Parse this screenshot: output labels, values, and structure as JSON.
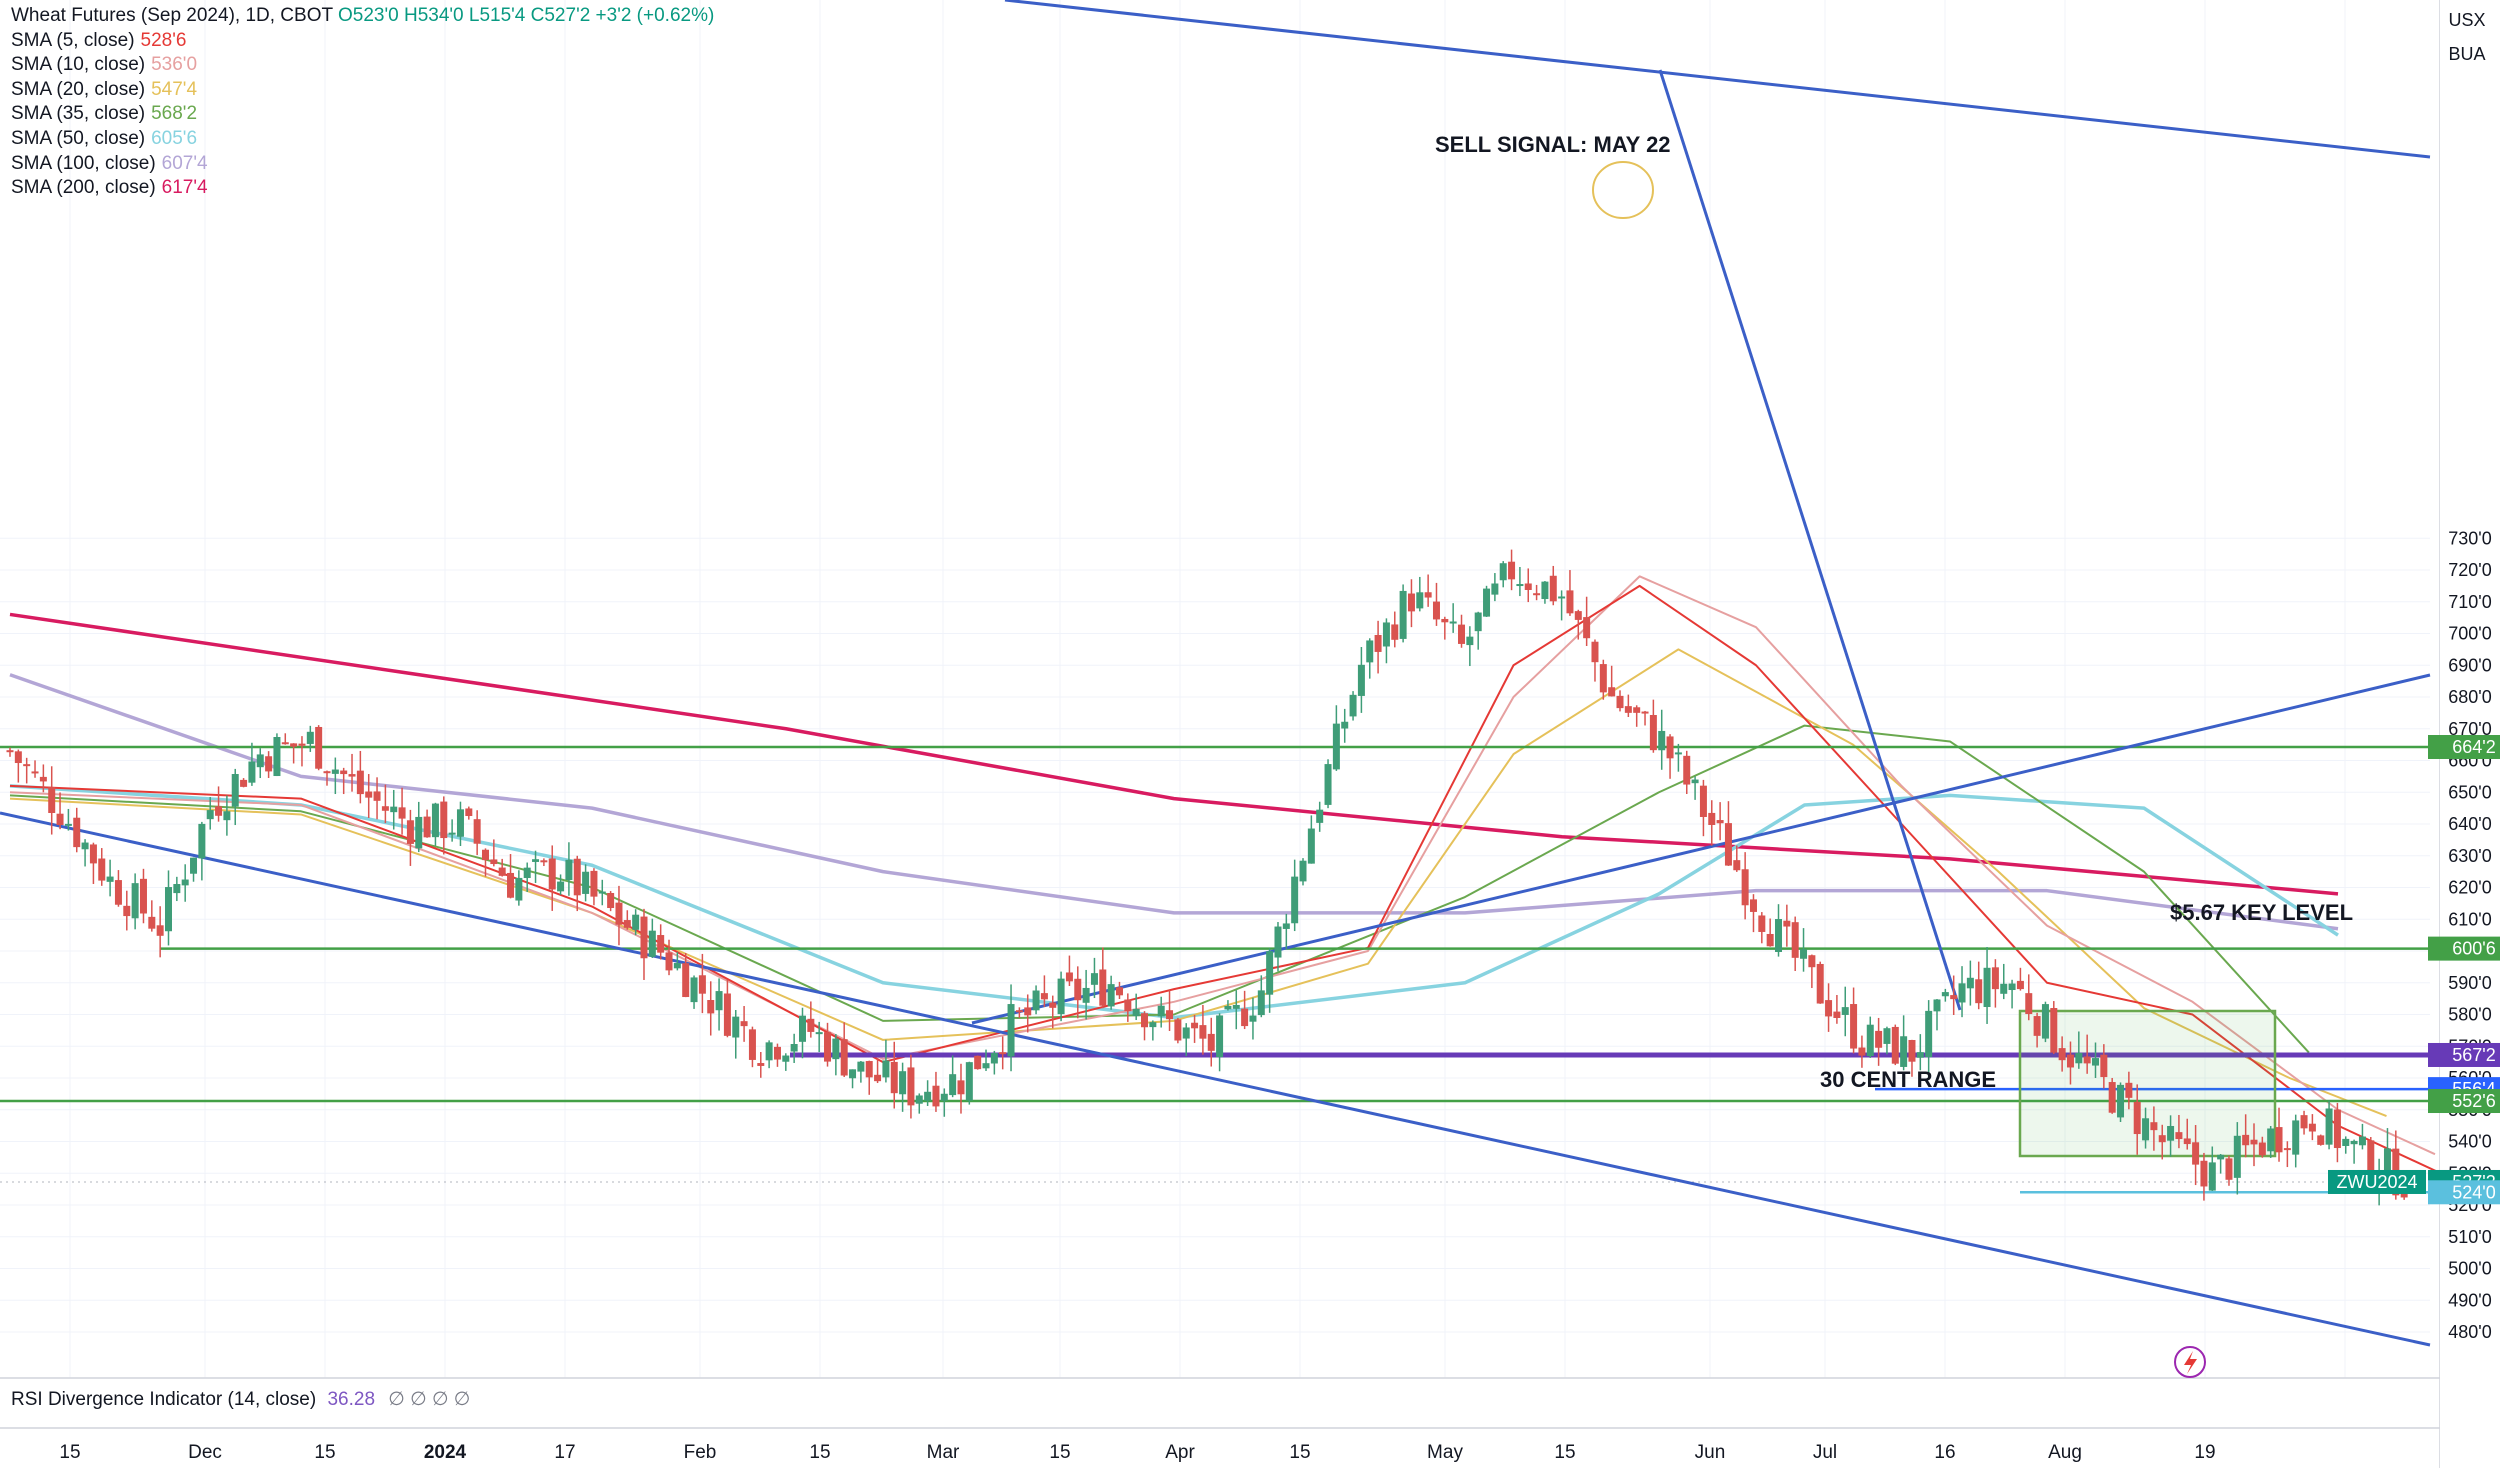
{
  "header": {
    "symbol_title": "Wheat Futures (Sep 2024), 1D, CBOT",
    "ohlc": [
      "O523'0",
      "H534'0",
      "L515'4",
      "C527'2",
      "+3'2 (+0.62%)"
    ]
  },
  "corner": {
    "currency": "USX",
    "unit": "BUA"
  },
  "indicators": [
    {
      "label": "SMA (5, close)",
      "value": "528'6",
      "color": "#e53935"
    },
    {
      "label": "SMA (10, close)",
      "value": "536'0",
      "color": "#e6a0a0"
    },
    {
      "label": "SMA (20, close)",
      "value": "547'4",
      "color": "#e5c15a"
    },
    {
      "label": "SMA (35, close)",
      "value": "568'2",
      "color": "#6aa84f"
    },
    {
      "label": "SMA (50, close)",
      "value": "605'6",
      "color": "#87d3e0"
    },
    {
      "label": "SMA (100, close)",
      "value": "607'4",
      "color": "#b3a6d6"
    },
    {
      "label": "SMA (200, close)",
      "value": "617'4",
      "color": "#d81b60"
    }
  ],
  "rsi": {
    "label": "RSI Divergence Indicator (14, close)",
    "value": "36.28",
    "glyphs": "∅ ∅ ∅ ∅"
  },
  "chart_data": {
    "type": "candlestick",
    "ylim": [
      480,
      735
    ],
    "yticks": [
      "480'0",
      "490'0",
      "500'0",
      "510'0",
      "520'0",
      "530'0",
      "540'0",
      "550'0",
      "560'0",
      "570'0",
      "580'0",
      "590'0",
      "600'0",
      "610'0",
      "620'0",
      "630'0",
      "640'0",
      "650'0",
      "660'0",
      "670'0",
      "680'0",
      "690'0",
      "700'0",
      "710'0",
      "720'0",
      "730'0"
    ],
    "x_labels": [
      "15",
      "Dec",
      "15",
      "2024",
      "17",
      "Feb",
      "15",
      "Mar",
      "15",
      "Apr",
      "15",
      "May",
      "15",
      "Jun",
      "Jul",
      "16",
      "Aug",
      "19"
    ],
    "price_tags": [
      {
        "text": "664'2",
        "value": 664.25,
        "color": "#43a047"
      },
      {
        "text": "600'6",
        "value": 600.75,
        "color": "#43a047"
      },
      {
        "text": "567'2",
        "value": 567.25,
        "color": "#673ab7"
      },
      {
        "text": "556'4",
        "value": 556.5,
        "color": "#2962ff"
      },
      {
        "text": "552'6",
        "value": 552.75,
        "color": "#43a047"
      },
      {
        "text": "527'2",
        "value": 527.25,
        "color": "#089981"
      },
      {
        "text": "524'0",
        "value": 524.0,
        "color": "#5bc0de"
      }
    ],
    "symbol_tag": "ZWU2024",
    "annotations": [
      "SELL SIGNAL: MAY 22",
      "$5.67 KEY LEVEL",
      "30 CENT RANGE"
    ],
    "horizontal_levels": [
      664.25,
      600.75,
      567.25,
      556.5,
      552.75,
      524.0
    ],
    "candle_path": [
      [
        0,
        663
      ],
      [
        6,
        645
      ],
      [
        12,
        622
      ],
      [
        18,
        608
      ],
      [
        24,
        645
      ],
      [
        30,
        662
      ],
      [
        36,
        666
      ],
      [
        42,
        650
      ],
      [
        48,
        640
      ],
      [
        54,
        640
      ],
      [
        60,
        622
      ],
      [
        66,
        625
      ],
      [
        72,
        612
      ],
      [
        78,
        600
      ],
      [
        84,
        585
      ],
      [
        90,
        570
      ],
      [
        96,
        575
      ],
      [
        102,
        562
      ],
      [
        108,
        556
      ],
      [
        114,
        560
      ],
      [
        120,
        577
      ],
      [
        126,
        585
      ],
      [
        132,
        590
      ],
      [
        138,
        578
      ],
      [
        144,
        570
      ],
      [
        150,
        588
      ],
      [
        156,
        640
      ],
      [
        162,
        690
      ],
      [
        168,
        712
      ],
      [
        174,
        695
      ],
      [
        180,
        720
      ],
      [
        186,
        712
      ],
      [
        192,
        680
      ],
      [
        198,
        666
      ],
      [
        204,
        640
      ],
      [
        210,
        612
      ],
      [
        216,
        590
      ],
      [
        222,
        572
      ],
      [
        228,
        568
      ],
      [
        234,
        588
      ],
      [
        240,
        590
      ],
      [
        246,
        570
      ],
      [
        252,
        555
      ],
      [
        258,
        540
      ],
      [
        264,
        530
      ],
      [
        270,
        540
      ],
      [
        276,
        548
      ],
      [
        282,
        535
      ],
      [
        288,
        527
      ]
    ],
    "sma": [
      {
        "name": "SMA 200",
        "color": "#d81b60",
        "points": [
          [
            0,
            706
          ],
          [
            40,
            688
          ],
          [
            80,
            670
          ],
          [
            120,
            648
          ],
          [
            160,
            636
          ],
          [
            200,
            629
          ],
          [
            240,
            618
          ]
        ]
      },
      {
        "name": "SMA 100",
        "color": "#b3a6d6",
        "points": [
          [
            0,
            687
          ],
          [
            30,
            655
          ],
          [
            60,
            645
          ],
          [
            90,
            625
          ],
          [
            120,
            612
          ],
          [
            150,
            612
          ],
          [
            180,
            619
          ],
          [
            210,
            619
          ],
          [
            240,
            607
          ]
        ]
      },
      {
        "name": "SMA 50",
        "color": "#87d3e0",
        "points": [
          [
            0,
            652
          ],
          [
            30,
            646
          ],
          [
            60,
            627
          ],
          [
            90,
            590
          ],
          [
            120,
            579
          ],
          [
            150,
            590
          ],
          [
            170,
            618
          ],
          [
            185,
            646
          ],
          [
            200,
            649
          ],
          [
            220,
            645
          ],
          [
            240,
            605
          ]
        ]
      },
      {
        "name": "SMA 35",
        "color": "#6aa84f",
        "points": [
          [
            0,
            649
          ],
          [
            30,
            644
          ],
          [
            60,
            620
          ],
          [
            90,
            578
          ],
          [
            120,
            580
          ],
          [
            150,
            617
          ],
          [
            170,
            650
          ],
          [
            185,
            671
          ],
          [
            200,
            666
          ],
          [
            220,
            625
          ],
          [
            237,
            568
          ]
        ]
      },
      {
        "name": "SMA 20",
        "color": "#e5c15a",
        "points": [
          [
            0,
            648
          ],
          [
            30,
            643
          ],
          [
            60,
            612
          ],
          [
            90,
            572
          ],
          [
            120,
            578
          ],
          [
            140,
            596
          ],
          [
            155,
            662
          ],
          [
            172,
            695
          ],
          [
            190,
            665
          ],
          [
            205,
            625
          ],
          [
            220,
            582
          ],
          [
            235,
            560
          ],
          [
            245,
            548
          ]
        ]
      },
      {
        "name": "SMA 10",
        "color": "#e6a0a0",
        "points": [
          [
            0,
            650
          ],
          [
            30,
            646
          ],
          [
            60,
            612
          ],
          [
            90,
            566
          ],
          [
            120,
            584
          ],
          [
            140,
            600
          ],
          [
            155,
            680
          ],
          [
            168,
            718
          ],
          [
            180,
            702
          ],
          [
            195,
            652
          ],
          [
            210,
            608
          ],
          [
            225,
            584
          ],
          [
            240,
            550
          ],
          [
            250,
            536
          ]
        ]
      },
      {
        "name": "SMA 5",
        "color": "#e53935",
        "points": [
          [
            0,
            652
          ],
          [
            30,
            648
          ],
          [
            60,
            614
          ],
          [
            90,
            565
          ],
          [
            120,
            588
          ],
          [
            140,
            601
          ],
          [
            155,
            690
          ],
          [
            168,
            715
          ],
          [
            180,
            690
          ],
          [
            195,
            640
          ],
          [
            210,
            590
          ],
          [
            225,
            580
          ],
          [
            240,
            545
          ],
          [
            252,
            528
          ]
        ]
      }
    ]
  }
}
